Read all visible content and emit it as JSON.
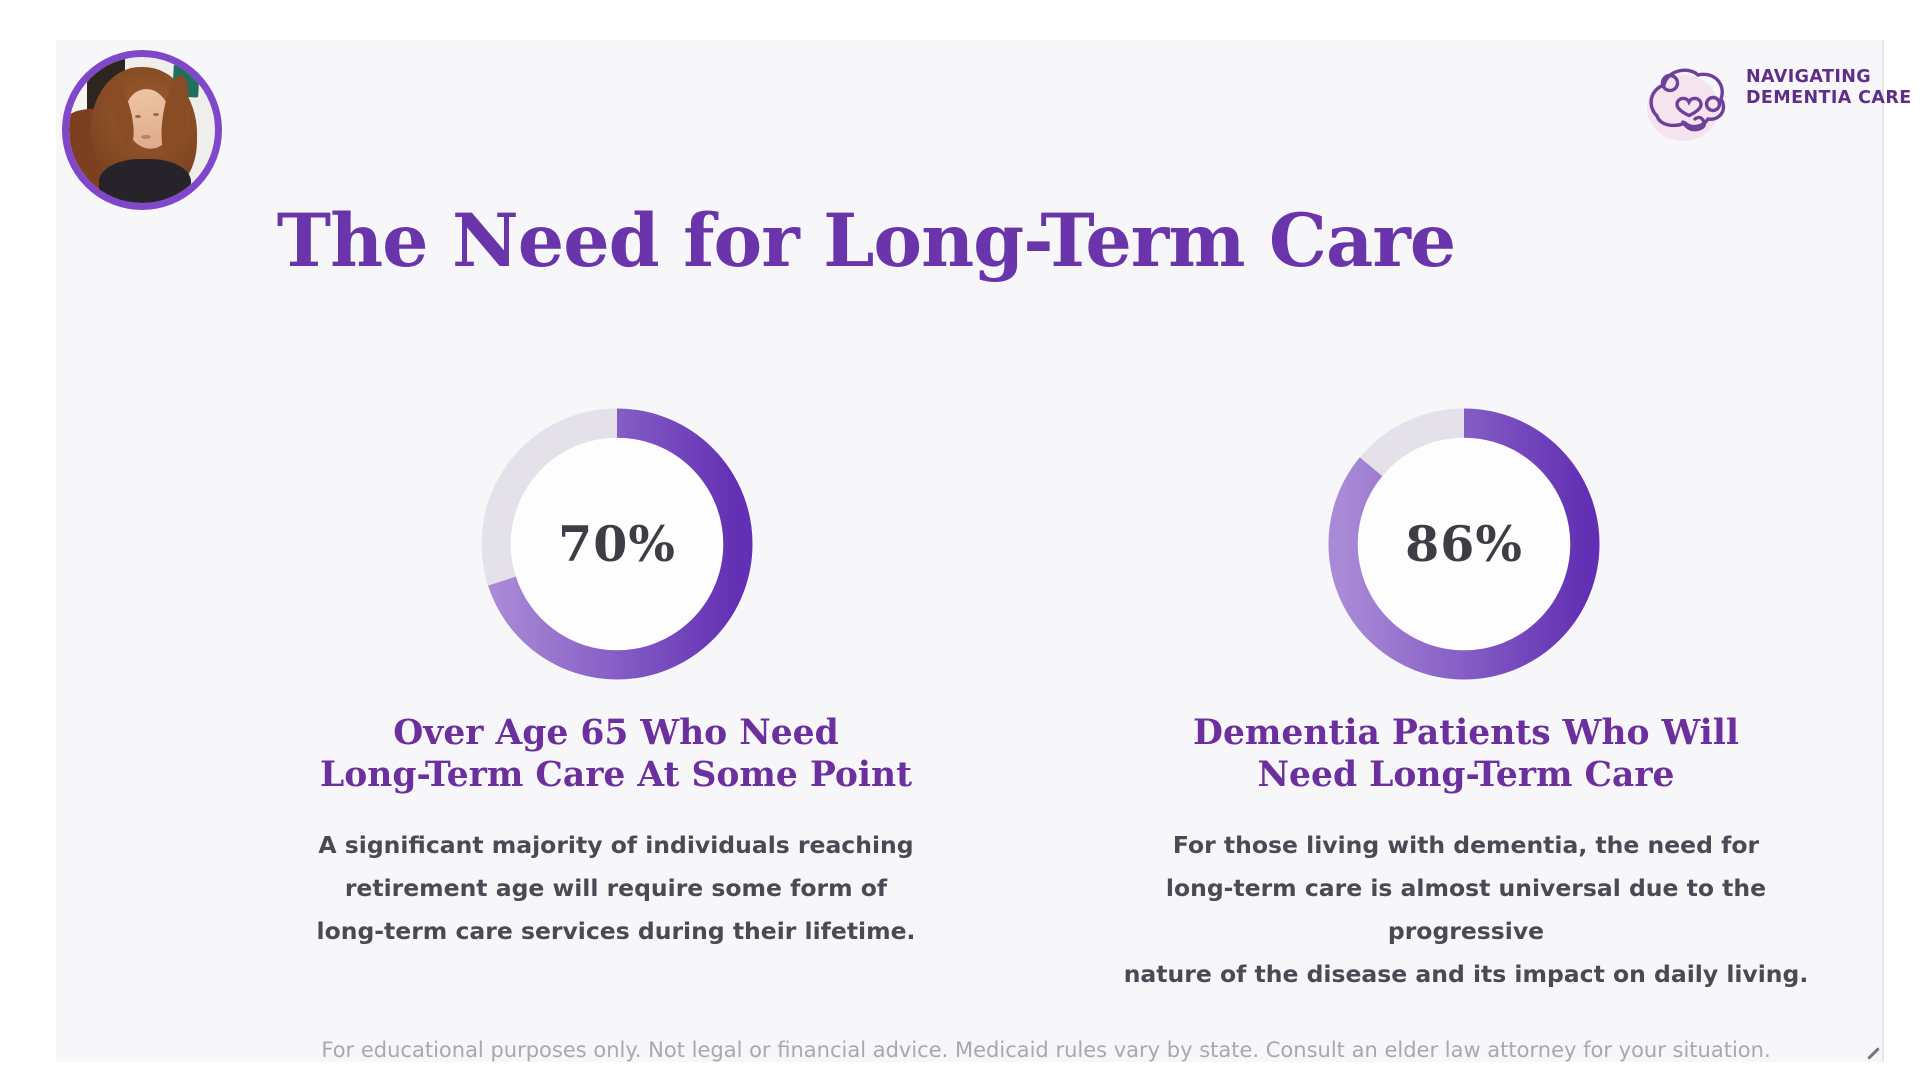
{
  "logo": {
    "icon": "brain-heart-doodle-icon",
    "brand_lines": [
      "NAVIGATING",
      "DEMENTIA CARE"
    ]
  },
  "webcam": {
    "description": "presenter-webcam-video"
  },
  "title": "The Need for Long-Term Care",
  "stats": [
    {
      "value": "70%",
      "caption_lines": [
        "Over Age 65 Who Need",
        "Long-Term Care At Some Point"
      ],
      "description_lines": [
        "A significant majority of individuals reaching",
        "retirement age will require some form of",
        "long-term care services during their lifetime."
      ]
    },
    {
      "value": "86%",
      "caption_lines": [
        "Dementia Patients Who Will",
        "Need Long-Term Care"
      ],
      "description_lines": [
        "For those living with dementia, the need for",
        "long-term care is almost universal due to the progressive",
        "nature of the disease and its impact on daily living."
      ]
    }
  ],
  "footer": "For educational purposes only. Not legal or financial advice. Medicaid rules vary by state. Consult an elder law attorney for your situation.",
  "colors": {
    "slide_background": "#f7f6f8",
    "title_purple": "#6a35ab",
    "caption_purple": "#6b2f9e",
    "body_gray": "#4a4a54",
    "footer_gray": "#a8a8ad",
    "logo_purple": "#5e2f86",
    "logo_blob_pink": "#f5e3ed",
    "avatar_ring_purple": "#8147cb",
    "percent_text": "#3d3d46"
  },
  "chart_data": [
    {
      "type": "pie",
      "subtype": "donut",
      "title": "Over Age 65 Who Need Long-Term Care At Some Point",
      "percent": 70,
      "values": [
        70,
        30
      ],
      "center_label": "70%",
      "start_angle_deg": 0,
      "direction": "clockwise",
      "colors": {
        "progress_top": "#a98ad6",
        "progress_bottom": "#6230b4",
        "track": "#e4e1ea",
        "hole": "#fdfdfe"
      }
    },
    {
      "type": "pie",
      "subtype": "donut",
      "title": "Dementia Patients Who Will Need Long-Term Care",
      "percent": 86,
      "values": [
        86,
        14
      ],
      "center_label": "86%",
      "start_angle_deg": 0,
      "direction": "clockwise",
      "colors": {
        "progress_top": "#a98ad6",
        "progress_bottom": "#6230b4",
        "track": "#e4e1ea",
        "hole": "#fdfdfe"
      }
    }
  ]
}
